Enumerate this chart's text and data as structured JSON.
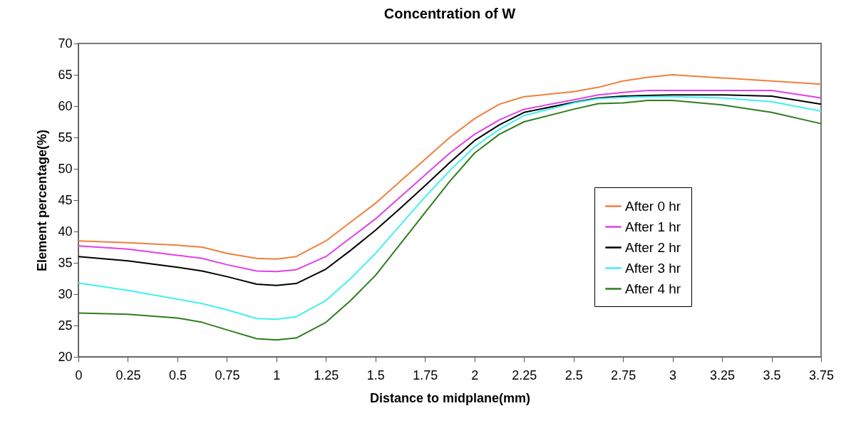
{
  "chart_data": {
    "type": "line",
    "title": "Concentration of W",
    "xlabel": "Distance to midplane(mm)",
    "ylabel": "Element percentage(%)",
    "x": [
      0,
      0.25,
      0.5,
      0.625,
      0.75,
      0.9,
      1,
      1.1,
      1.25,
      1.375,
      1.5,
      1.625,
      1.75,
      1.875,
      2,
      2.125,
      2.25,
      2.5,
      2.625,
      2.75,
      2.875,
      3,
      3.25,
      3.5,
      3.75
    ],
    "series": [
      {
        "name": "After 0 hr",
        "color": "#f07f3c",
        "values": [
          38.5,
          38.2,
          37.8,
          37.5,
          36.5,
          35.7,
          35.6,
          36,
          38.5,
          41.5,
          44.5,
          48,
          51.5,
          55,
          58,
          60.3,
          61.5,
          62.3,
          63,
          64,
          64.6,
          65,
          64.5,
          64,
          63.5
        ]
      },
      {
        "name": "After 1 hr",
        "color": "#e040e8",
        "values": [
          37.7,
          37.2,
          36.2,
          35.7,
          34.7,
          33.7,
          33.6,
          33.9,
          36,
          39,
          42,
          45.5,
          49,
          52.5,
          55.5,
          57.8,
          59.5,
          61,
          61.8,
          62.2,
          62.5,
          62.5,
          62.5,
          62.5,
          61.3
        ]
      },
      {
        "name": "After 2 hr",
        "color": "#000000",
        "values": [
          36,
          35.3,
          34.3,
          33.7,
          32.8,
          31.6,
          31.4,
          31.7,
          34,
          37,
          40.2,
          43.7,
          47.3,
          51,
          54.5,
          57,
          59,
          60.6,
          61.3,
          61.6,
          61.7,
          61.8,
          61.8,
          61.6,
          60.3
        ]
      },
      {
        "name": "After 3 hr",
        "color": "#40f0f0",
        "values": [
          31.8,
          30.6,
          29.2,
          28.5,
          27.5,
          26.1,
          26,
          26.4,
          29,
          32.5,
          36.5,
          41,
          45.5,
          49.7,
          53.5,
          56.3,
          58.5,
          60.5,
          61.2,
          61.4,
          61.5,
          61.5,
          61.3,
          60.7,
          59.2
        ]
      },
      {
        "name": "After 4 hr",
        "color": "#2e7d1e",
        "values": [
          27,
          26.8,
          26.2,
          25.5,
          24.3,
          22.9,
          22.7,
          23,
          25.5,
          29,
          33,
          38,
          43,
          48,
          52.5,
          55.5,
          57.5,
          59.5,
          60.4,
          60.5,
          60.9,
          60.9,
          60.2,
          59,
          57.2
        ]
      }
    ],
    "xlim": [
      0,
      3.75
    ],
    "xticks": [
      0,
      0.25,
      0.5,
      0.75,
      1,
      1.25,
      1.5,
      1.75,
      2,
      2.25,
      2.5,
      2.75,
      3,
      3.25,
      3.5,
      3.75
    ],
    "ylim": [
      20,
      70
    ],
    "yticks": [
      20,
      25,
      30,
      35,
      40,
      45,
      50,
      55,
      60,
      65,
      70
    ],
    "grid": false,
    "legend": "right",
    "marker": "none",
    "line_style": "solid"
  }
}
